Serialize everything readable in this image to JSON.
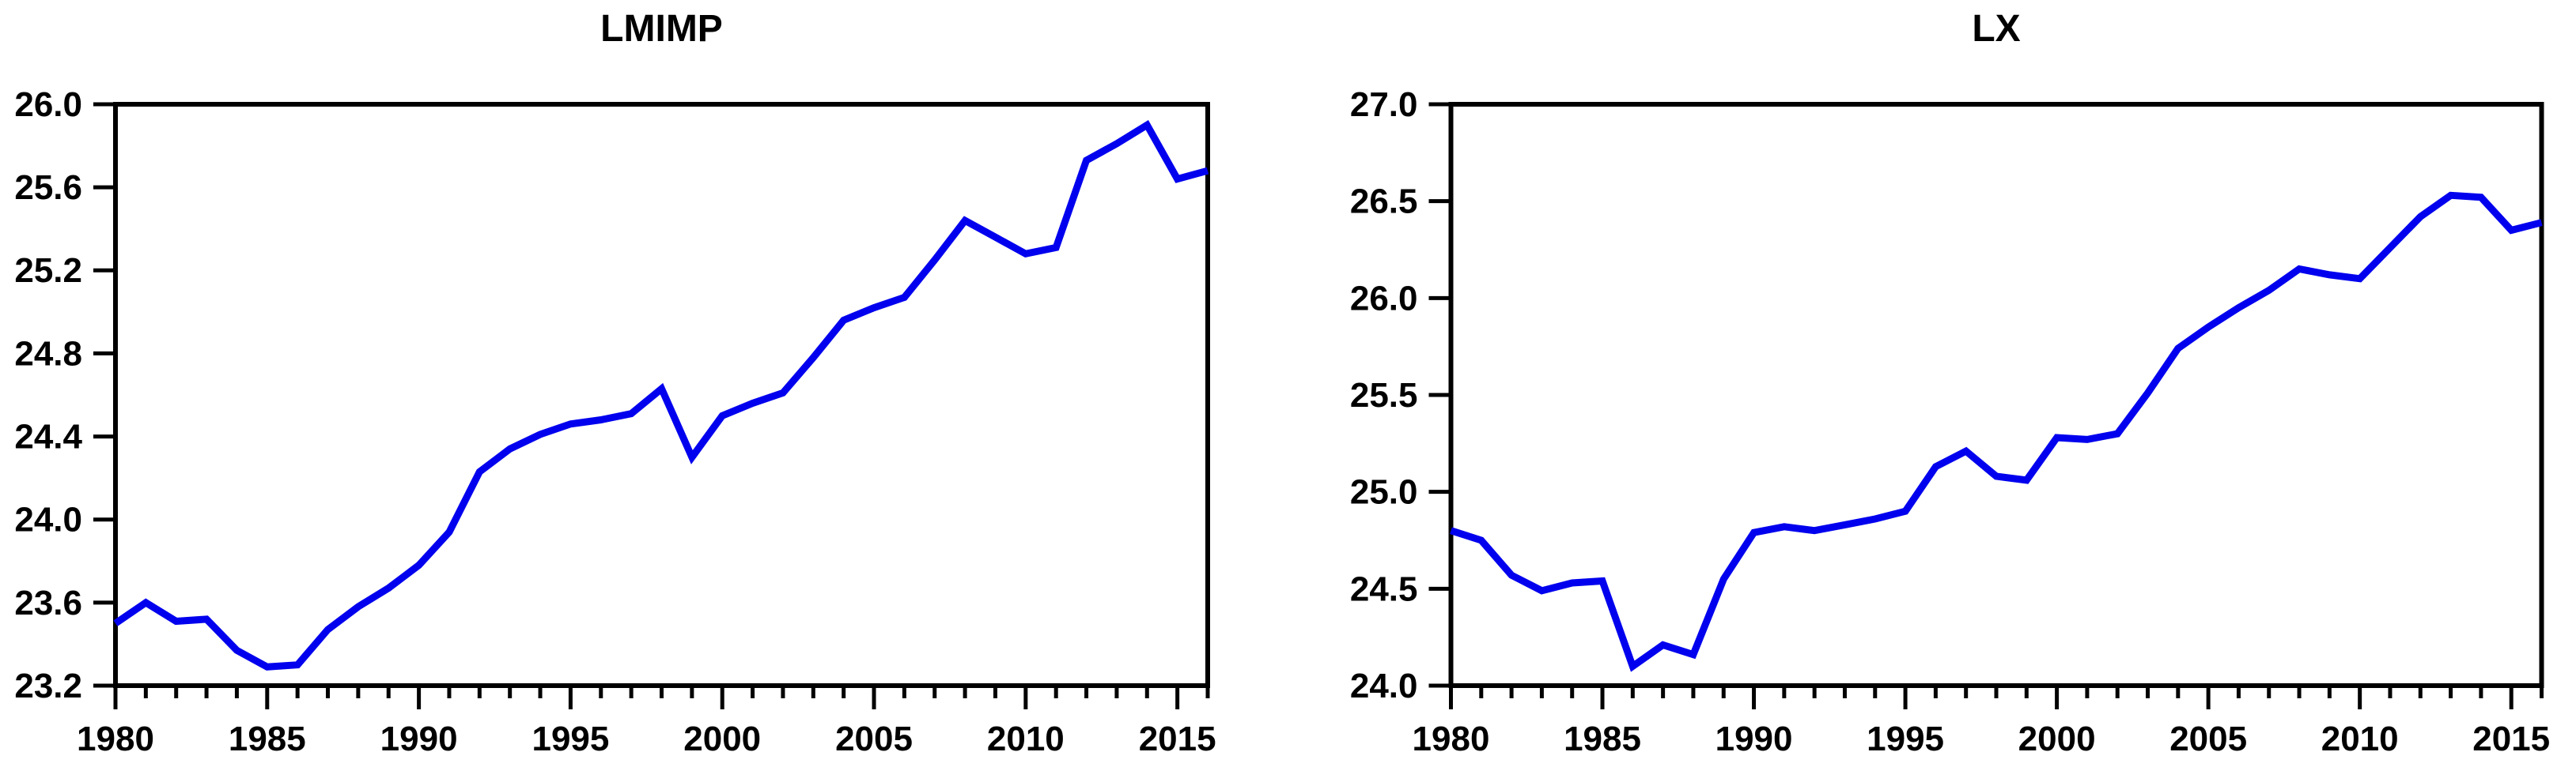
{
  "page": {
    "background": "#ffffff",
    "description": "Two EViews-style time series line charts side by side"
  },
  "chart_data": [
    {
      "type": "line",
      "title": "LMIMP",
      "x": [
        1980,
        1981,
        1982,
        1983,
        1984,
        1985,
        1986,
        1987,
        1988,
        1989,
        1990,
        1991,
        1992,
        1993,
        1994,
        1995,
        1996,
        1997,
        1998,
        1999,
        2000,
        2001,
        2002,
        2003,
        2004,
        2005,
        2006,
        2007,
        2008,
        2009,
        2010,
        2011,
        2012,
        2013,
        2014,
        2015,
        2016
      ],
      "values": [
        23.5,
        23.6,
        23.51,
        23.52,
        23.37,
        23.29,
        23.3,
        23.47,
        23.58,
        23.67,
        23.78,
        23.94,
        24.23,
        24.34,
        24.41,
        24.46,
        24.48,
        24.51,
        24.63,
        24.3,
        24.5,
        24.56,
        24.61,
        24.78,
        24.96,
        25.02,
        25.07,
        25.25,
        25.44,
        25.36,
        25.28,
        25.31,
        25.73,
        25.81,
        25.9,
        25.64,
        25.68
      ],
      "xlim": [
        1980,
        2016
      ],
      "ylim": [
        23.2,
        26.0
      ],
      "ytick_step": 0.4,
      "ytick_labels": [
        "26.0",
        "25.6",
        "25.2",
        "24.8",
        "24.4",
        "24.0",
        "23.6",
        "23.2"
      ],
      "xtick_labels": [
        "1980",
        "1985",
        "1990",
        "1995",
        "2000",
        "2005",
        "2010",
        "2015"
      ],
      "xlabel": "",
      "ylabel": "",
      "grid": false,
      "legend": "none",
      "line_color": "#0000EE",
      "axis_color": "#000000"
    },
    {
      "type": "line",
      "title": "LX",
      "x": [
        1980,
        1981,
        1982,
        1983,
        1984,
        1985,
        1986,
        1987,
        1988,
        1989,
        1990,
        1991,
        1992,
        1993,
        1994,
        1995,
        1996,
        1997,
        1998,
        1999,
        2000,
        2001,
        2002,
        2003,
        2004,
        2005,
        2006,
        2007,
        2008,
        2009,
        2010,
        2011,
        2012,
        2013,
        2014,
        2015,
        2016
      ],
      "values": [
        24.8,
        24.75,
        24.57,
        24.49,
        24.53,
        24.54,
        24.1,
        24.21,
        24.16,
        24.55,
        24.79,
        24.82,
        24.8,
        24.83,
        24.86,
        24.9,
        25.13,
        25.21,
        25.08,
        25.06,
        25.28,
        25.27,
        25.3,
        25.51,
        25.74,
        25.85,
        25.95,
        26.04,
        26.15,
        26.12,
        26.1,
        26.26,
        26.42,
        26.53,
        26.52,
        26.35,
        26.39
      ],
      "xlim": [
        1980,
        2016
      ],
      "ylim": [
        24.0,
        27.0
      ],
      "ytick_step": 0.5,
      "ytick_labels": [
        "27.0",
        "26.5",
        "26.0",
        "25.5",
        "25.0",
        "24.5",
        "24.0"
      ],
      "xtick_labels": [
        "1980",
        "1985",
        "1990",
        "1995",
        "2000",
        "2005",
        "2010",
        "2015"
      ],
      "xlabel": "",
      "ylabel": "",
      "grid": false,
      "legend": "none",
      "line_color": "#0000EE",
      "axis_color": "#000000"
    }
  ]
}
